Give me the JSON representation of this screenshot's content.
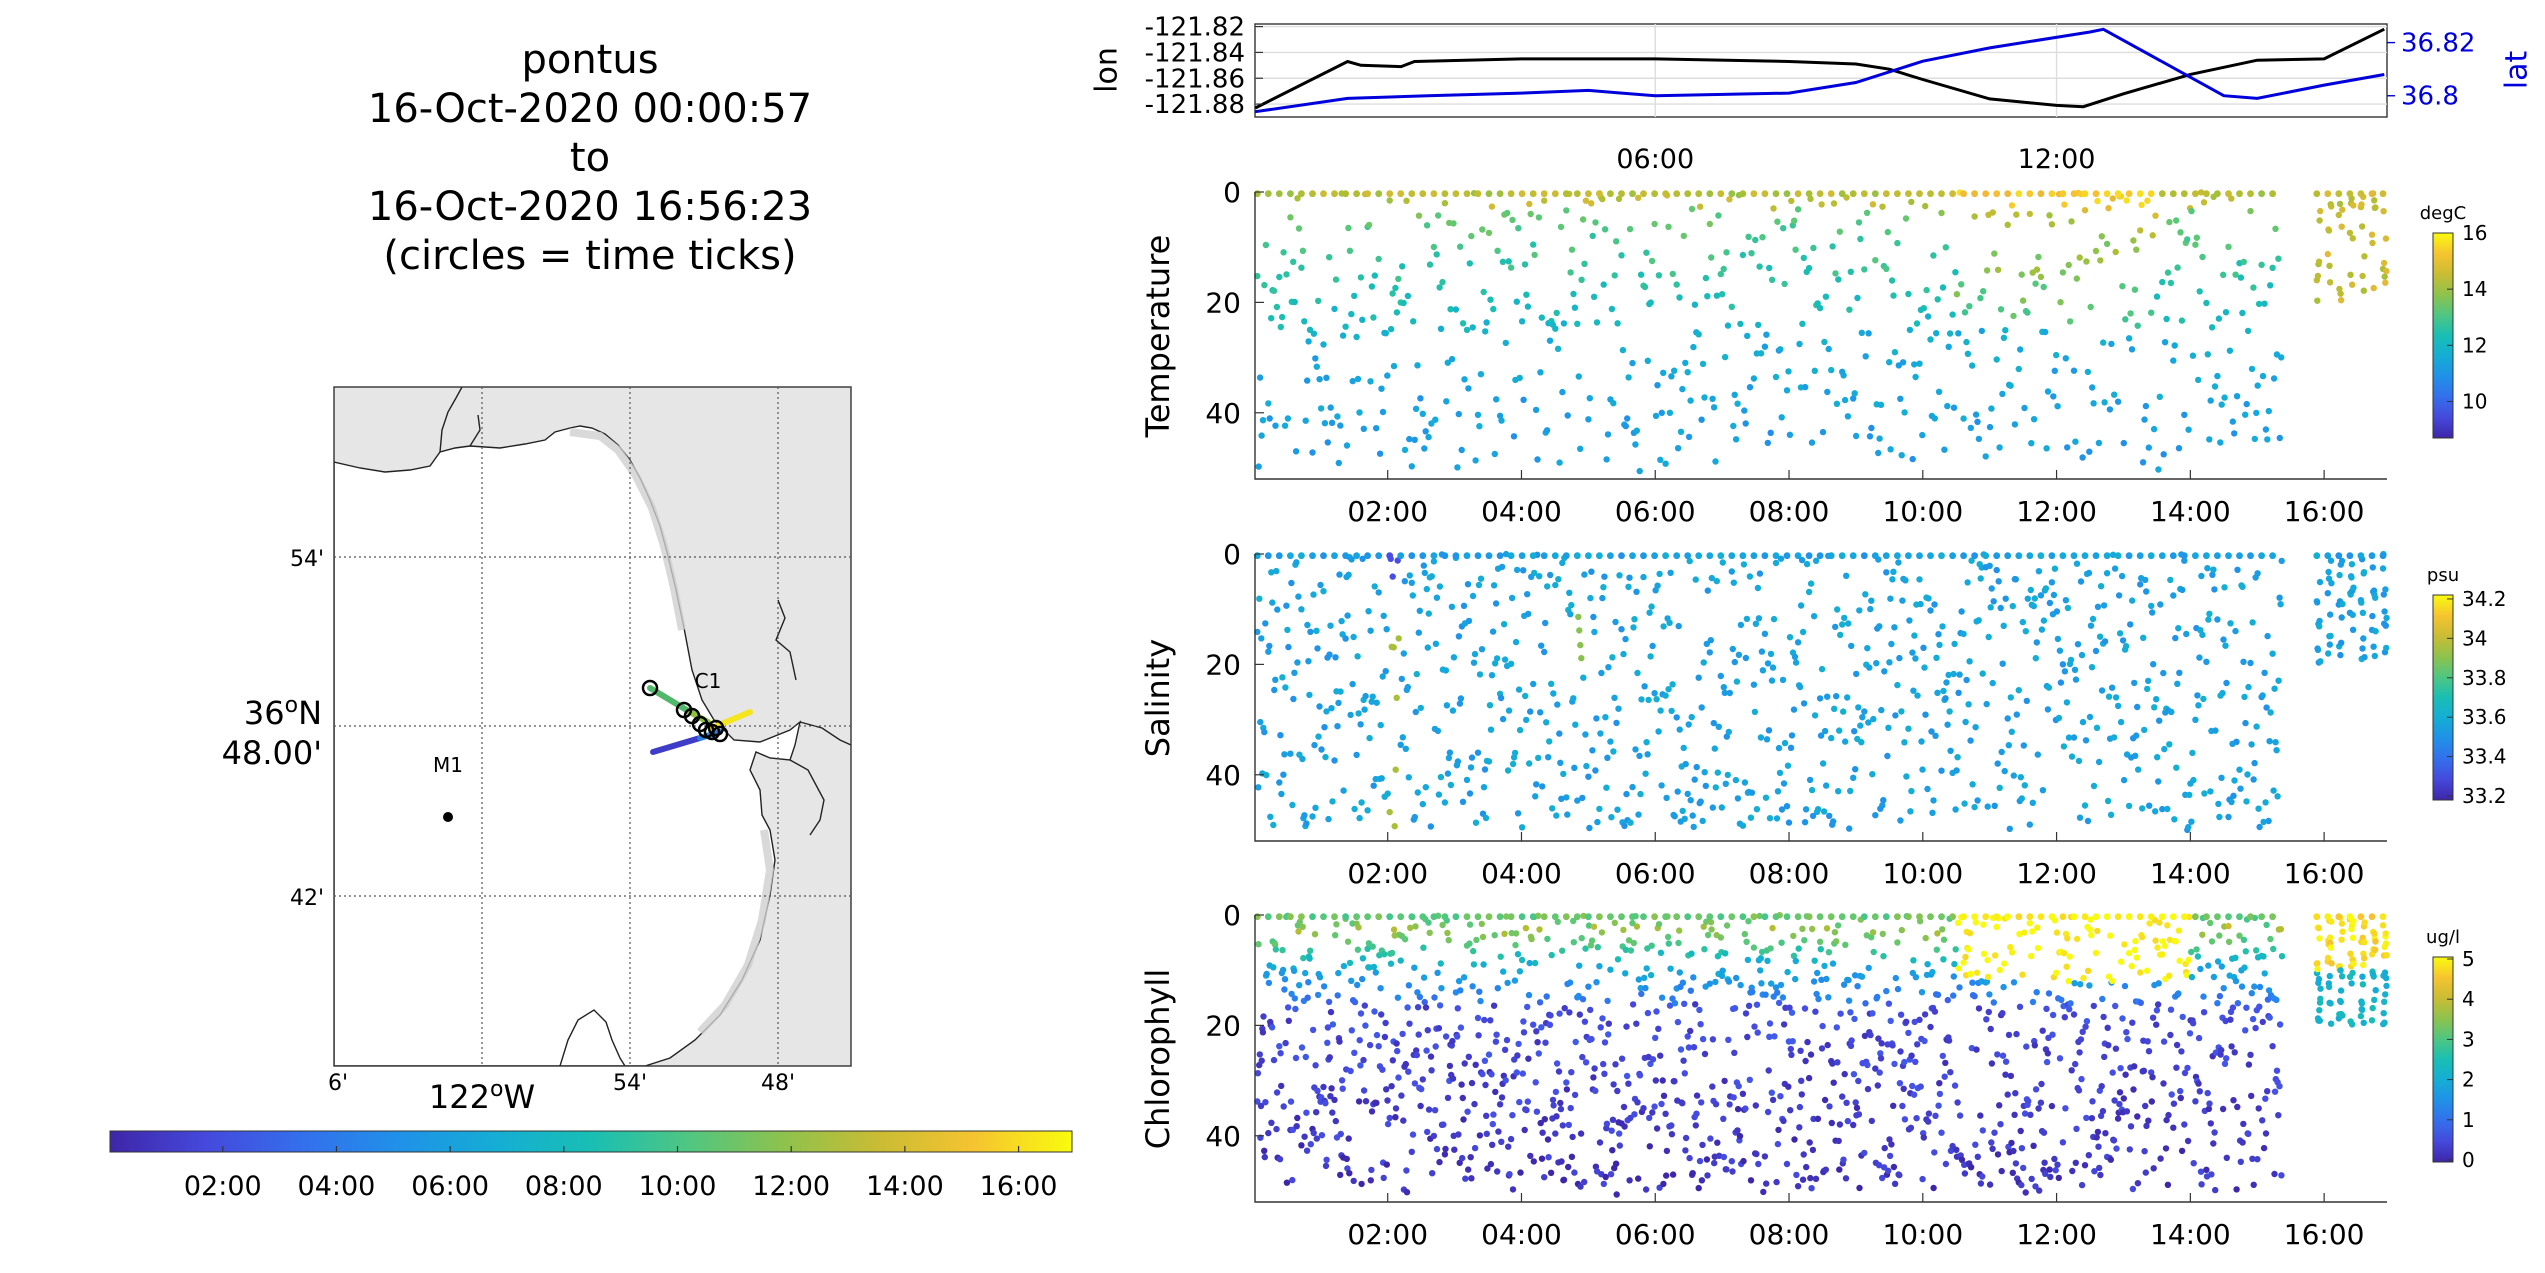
{
  "title_lines": [
    "pontus",
    "16-Oct-2020 00:00:57",
    "to",
    "16-Oct-2020 16:56:23",
    "(circles = time ticks)"
  ],
  "colors": {
    "lon_line": "#000000",
    "lat_line": "#0000dd",
    "land": "#e6e6e6",
    "water": "#ffffff"
  },
  "time_colorbar": {
    "ticks": [
      "02:00",
      "04:00",
      "06:00",
      "08:00",
      "10:00",
      "12:00",
      "14:00",
      "16:00"
    ],
    "tick_hours": [
      2,
      4,
      6,
      8,
      10,
      12,
      14,
      16
    ],
    "range_hours": [
      0.016,
      16.94
    ]
  },
  "map": {
    "lat_labels": [
      "54'",
      "48.00'",
      "42'"
    ],
    "lat_deg_label": "36",
    "lat_deg_suffix": "N",
    "lon_labels": [
      "6'",
      "54'",
      "48'"
    ],
    "lon_deg_label": "122",
    "lon_deg_suffix": "W",
    "moorings": [
      {
        "name": "M1"
      },
      {
        "name": "C1"
      }
    ]
  },
  "chart_data": [
    {
      "type": "line",
      "panel": "position",
      "xticks": [
        "06:00",
        "12:00"
      ],
      "xtick_hours": [
        6,
        12
      ],
      "xlim_hours": [
        0.016,
        16.94
      ],
      "left_axis": {
        "label": "lon",
        "ticks": [
          "-121.82",
          "-121.84",
          "-121.86",
          "-121.88"
        ],
        "tick_values": [
          -121.82,
          -121.84,
          -121.86,
          -121.88
        ],
        "lim": [
          -121.89,
          -121.818
        ]
      },
      "right_axis": {
        "label": "lat",
        "ticks": [
          "36.82",
          "36.8"
        ],
        "tick_values": [
          36.82,
          36.8
        ],
        "lim": [
          36.792,
          36.827
        ]
      },
      "series": [
        {
          "axis": "left",
          "hours": [
            0.02,
            1.4,
            1.6,
            2.2,
            2.4,
            4.0,
            6.0,
            8.0,
            9.0,
            9.5,
            10.0,
            11.0,
            12.0,
            12.4,
            13.0,
            14.0,
            15.0,
            16.0,
            16.9
          ],
          "values": [
            -121.883,
            -121.847,
            -121.85,
            -121.851,
            -121.847,
            -121.845,
            -121.845,
            -121.847,
            -121.849,
            -121.853,
            -121.861,
            -121.876,
            -121.881,
            -121.882,
            -121.872,
            -121.857,
            -121.846,
            -121.845,
            -121.822
          ]
        },
        {
          "axis": "right",
          "hours": [
            0.02,
            1.4,
            2.6,
            4.0,
            5.0,
            5.5,
            6.0,
            8.0,
            9.0,
            10.0,
            11.0,
            12.5,
            12.7,
            14.5,
            15.0,
            16.0,
            16.9
          ],
          "values": [
            36.794,
            36.799,
            36.8,
            36.801,
            36.802,
            36.801,
            36.8,
            36.801,
            36.805,
            36.813,
            36.818,
            36.824,
            36.825,
            36.8,
            36.799,
            36.804,
            36.808
          ]
        }
      ]
    },
    {
      "type": "scatter",
      "panel": "temperature",
      "ylabel": "Temperature",
      "colorbar": {
        "unit": "degC",
        "ticks": [
          "16",
          "14",
          "12",
          "10"
        ],
        "tick_values": [
          16,
          14,
          12,
          10
        ],
        "lim": [
          8.7,
          16.0
        ]
      },
      "xticks": [
        "02:00",
        "04:00",
        "06:00",
        "08:00",
        "10:00",
        "12:00",
        "14:00",
        "16:00"
      ],
      "xtick_hours": [
        2,
        4,
        6,
        8,
        10,
        12,
        14,
        16
      ],
      "xlim_hours": [
        0.016,
        16.94
      ],
      "yticks": [
        "0",
        "20",
        "40"
      ],
      "ytick_values": [
        0,
        20,
        40
      ],
      "ylim": [
        0,
        52
      ]
    },
    {
      "type": "scatter",
      "panel": "salinity",
      "ylabel": "Salinity",
      "colorbar": {
        "unit": "psu",
        "ticks": [
          "34.2",
          "34",
          "33.8",
          "33.6",
          "33.4",
          "33.2"
        ],
        "tick_values": [
          34.2,
          34.0,
          33.8,
          33.6,
          33.4,
          33.2
        ],
        "lim": [
          33.18,
          34.22
        ]
      },
      "xticks": [
        "02:00",
        "04:00",
        "06:00",
        "08:00",
        "10:00",
        "12:00",
        "14:00",
        "16:00"
      ],
      "xtick_hours": [
        2,
        4,
        6,
        8,
        10,
        12,
        14,
        16
      ],
      "xlim_hours": [
        0.016,
        16.94
      ],
      "yticks": [
        "0",
        "20",
        "40"
      ],
      "ytick_values": [
        0,
        20,
        40
      ],
      "ylim": [
        0,
        52
      ]
    },
    {
      "type": "scatter",
      "panel": "chlorophyll",
      "ylabel": "Chlorophyll",
      "colorbar": {
        "unit": "ug/l",
        "ticks": [
          "5",
          "4",
          "3",
          "2",
          "1",
          "0"
        ],
        "tick_values": [
          5,
          4,
          3,
          2,
          1,
          0
        ],
        "lim": [
          -0.05,
          5.05
        ]
      },
      "xticks": [
        "02:00",
        "04:00",
        "06:00",
        "08:00",
        "10:00",
        "12:00",
        "14:00",
        "16:00"
      ],
      "xtick_hours": [
        2,
        4,
        6,
        8,
        10,
        12,
        14,
        16
      ],
      "xlim_hours": [
        0.016,
        16.94
      ],
      "yticks": [
        "0",
        "20",
        "40"
      ],
      "ytick_values": [
        0,
        20,
        40
      ],
      "ylim": [
        0,
        52
      ]
    }
  ]
}
